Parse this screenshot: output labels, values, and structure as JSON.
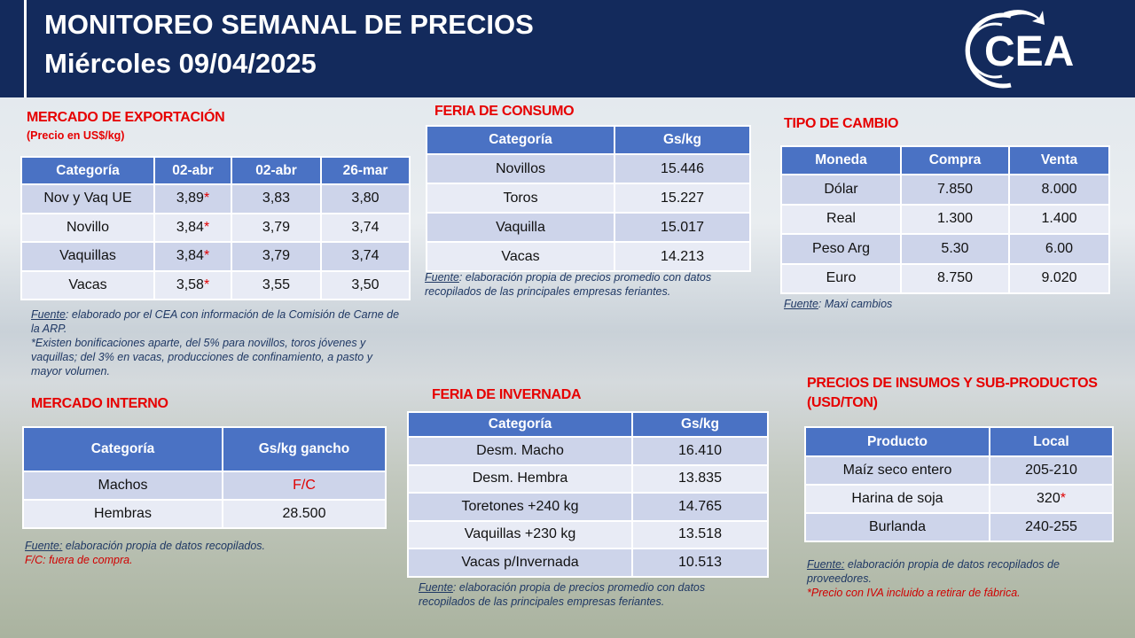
{
  "header": {
    "title": "MONITOREO SEMANAL DE PRECIOS",
    "date": "Miércoles 09/04/2025",
    "logo": "CEA"
  },
  "sections": [
    {
      "title": "MERCADO DE EXPORTACIÓN",
      "subtitle": "(Precio en US$/kg)",
      "table": {
        "columns": [
          "Categoría",
          "02-abr",
          "02-abr",
          "26-mar"
        ],
        "rows": [
          [
            "Nov y Vaq UE",
            {
              "value": "3,89",
              "mark": "*"
            },
            "3,83",
            "3,80"
          ],
          [
            "Novillo",
            {
              "value": "3,84",
              "mark": "*"
            },
            "3,79",
            "3,74"
          ],
          [
            "Vaquillas",
            {
              "value": "3,84",
              "mark": "*"
            },
            "3,79",
            "3,74"
          ],
          [
            "Vacas",
            {
              "value": "3,58",
              "mark": "*"
            },
            "3,55",
            "3,50"
          ]
        ]
      },
      "notes": [
        {
          "label": "Fuente",
          "text": ": elaborado por el CEA con información de la Comisión de Carne de la ARP."
        },
        {
          "text": "*Existen bonificaciones aparte, del 5% para novillos, toros jóvenes y vaquillas; del 3% en vacas, producciones de confinamiento, a pasto y mayor volumen."
        }
      ]
    },
    {
      "title": "MERCADO INTERNO",
      "table": {
        "columns": [
          "Categoría",
          "Gs/kg gancho"
        ],
        "rows": [
          [
            "Machos",
            "F/C"
          ],
          [
            "Hembras",
            "28.500"
          ]
        ]
      },
      "notes": [
        {
          "label": "Fuente:",
          "text": " elaboración propia de datos recopilados."
        },
        {
          "text": "F/C: fuera de compra."
        }
      ]
    },
    {
      "title": "FERIA DE CONSUMO",
      "table": {
        "columns": [
          "Categoría",
          "Gs/kg"
        ],
        "rows": [
          [
            "Novillos",
            "15.446"
          ],
          [
            "Toros",
            "15.227"
          ],
          [
            "Vaquilla",
            "15.017"
          ],
          [
            "Vacas",
            "14.213"
          ]
        ]
      },
      "notes": [
        {
          "label": "Fuente",
          "text": ": elaboración propia de precios promedio con datos recopilados de las principales empresas feriantes."
        }
      ]
    },
    {
      "title": "FERIA DE INVERNADA",
      "table": {
        "columns": [
          "Categoría",
          "Gs/kg"
        ],
        "rows": [
          [
            "Desm. Macho",
            "16.410"
          ],
          [
            "Desm. Hembra",
            "13.835"
          ],
          [
            "Toretones +240 kg",
            "14.765"
          ],
          [
            "Vaquillas +230 kg",
            "13.518"
          ],
          [
            "Vacas p/Invernada",
            "10.513"
          ]
        ]
      },
      "notes": [
        {
          "label": "Fuente",
          "text": ": elaboración propia de precios promedio con datos recopilados de las principales empresas feriantes."
        }
      ]
    },
    {
      "title": "TIPO DE CAMBIO",
      "table": {
        "columns": [
          "Moneda",
          "Compra",
          "Venta"
        ],
        "rows": [
          [
            "Dólar",
            "7.850",
            "8.000"
          ],
          [
            "Real",
            "1.300",
            "1.400"
          ],
          [
            "Peso Arg",
            "5.30",
            "6.00"
          ],
          [
            "Euro",
            "8.750",
            "9.020"
          ]
        ]
      },
      "notes": [
        {
          "label": "Fuente",
          "text": ": Maxi cambios"
        }
      ]
    },
    {
      "title": "PRECIOS DE INSUMOS Y SUB-PRODUCTOS",
      "subtitle": "(USD/TON)",
      "table": {
        "columns": [
          "Producto",
          "Local"
        ],
        "rows": [
          [
            "Maíz seco entero",
            "205-210"
          ],
          [
            "Harina de soja",
            {
              "value": "320",
              "mark": "*"
            }
          ],
          [
            "Burlanda",
            "240-255"
          ]
        ]
      },
      "notes": [
        {
          "label": "Fuente:",
          "text": " elaboración propia de datos recopilados de proveedores."
        },
        {
          "text": "*Precio con IVA incluido a retirar de fábrica."
        }
      ]
    }
  ]
}
